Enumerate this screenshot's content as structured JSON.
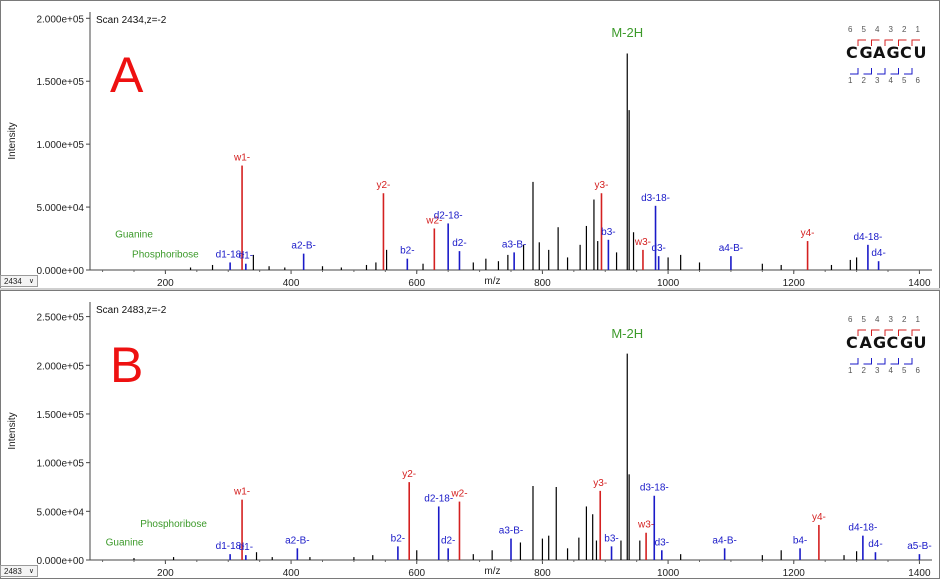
{
  "panels": [
    {
      "panel_letter": "A",
      "scan_title": "Scan 2434,z=-2",
      "scan_selector": "2434",
      "y_ticks": [
        "0.000e+00",
        "5.000e+04",
        "1.000e+05",
        "1.500e+05",
        "2.000e+05"
      ],
      "sequence": "CGAGCU",
      "top_numbers": [
        "6",
        "5",
        "4",
        "3",
        "2",
        "1"
      ],
      "bottom_numbers": [
        "1",
        "2",
        "3",
        "4",
        "5",
        "6"
      ]
    },
    {
      "panel_letter": "B",
      "scan_title": "Scan 2483,z=-2",
      "scan_selector": "2483",
      "y_ticks": [
        "0.000e+00",
        "5.000e+04",
        "1.000e+05",
        "1.500e+05",
        "2.000e+05",
        "2.500e+05"
      ],
      "sequence": "CAGCGU",
      "top_numbers": [
        "6",
        "5",
        "4",
        "3",
        "2",
        "1"
      ],
      "bottom_numbers": [
        "1",
        "2",
        "3",
        "4",
        "5",
        "6"
      ]
    }
  ],
  "chart_data": [
    {
      "type": "bar",
      "title": "Scan 2434,z=-2",
      "xlabel": "m/z",
      "ylabel": "Intensity",
      "xlim": [
        80,
        1420
      ],
      "ylim": [
        0,
        205000
      ],
      "x_ticks": [
        200,
        400,
        600,
        800,
        1000,
        1200,
        1400
      ],
      "colors": {
        "unlabeled": "#000000",
        "w_y": "#d42020",
        "a_b_d": "#1a1ac8",
        "base": "#3c9a2a"
      },
      "peaks": [
        {
          "mz": 240,
          "intensity": 2000
        },
        {
          "mz": 275,
          "intensity": 4000
        },
        {
          "mz": 303,
          "intensity": 6000,
          "label": "d1-18-",
          "cls": "abd"
        },
        {
          "mz": 322,
          "intensity": 83000,
          "label": "w1-",
          "cls": "wy"
        },
        {
          "mz": 328,
          "intensity": 5000,
          "label": "d1-",
          "cls": "abd"
        },
        {
          "mz": 340,
          "intensity": 12000
        },
        {
          "mz": 365,
          "intensity": 3000
        },
        {
          "mz": 390,
          "intensity": 2000
        },
        {
          "mz": 420,
          "intensity": 13000,
          "label": "a2-B-",
          "cls": "abd"
        },
        {
          "mz": 450,
          "intensity": 3000
        },
        {
          "mz": 480,
          "intensity": 2000
        },
        {
          "mz": 520,
          "intensity": 4000
        },
        {
          "mz": 535,
          "intensity": 6000
        },
        {
          "mz": 547,
          "intensity": 61000,
          "label": "y2-",
          "cls": "wy"
        },
        {
          "mz": 552,
          "intensity": 16000
        },
        {
          "mz": 585,
          "intensity": 9000,
          "label": "b2-",
          "cls": "abd"
        },
        {
          "mz": 610,
          "intensity": 5000
        },
        {
          "mz": 628,
          "intensity": 33000,
          "label": "w2-",
          "cls": "wy"
        },
        {
          "mz": 650,
          "intensity": 37000,
          "label": "d2-18-",
          "cls": "abd"
        },
        {
          "mz": 668,
          "intensity": 15000,
          "label": "d2-",
          "cls": "abd"
        },
        {
          "mz": 690,
          "intensity": 6000
        },
        {
          "mz": 710,
          "intensity": 9000
        },
        {
          "mz": 730,
          "intensity": 7000
        },
        {
          "mz": 745,
          "intensity": 12000
        },
        {
          "mz": 755,
          "intensity": 14000,
          "label": "a3-B-",
          "cls": "abd"
        },
        {
          "mz": 770,
          "intensity": 20000
        },
        {
          "mz": 785,
          "intensity": 70000
        },
        {
          "mz": 795,
          "intensity": 22000
        },
        {
          "mz": 810,
          "intensity": 16000
        },
        {
          "mz": 825,
          "intensity": 34000
        },
        {
          "mz": 840,
          "intensity": 10000
        },
        {
          "mz": 860,
          "intensity": 20000
        },
        {
          "mz": 870,
          "intensity": 35000
        },
        {
          "mz": 882,
          "intensity": 56000
        },
        {
          "mz": 888,
          "intensity": 23000
        },
        {
          "mz": 894,
          "intensity": 61000,
          "label": "y3-",
          "cls": "wy"
        },
        {
          "mz": 905,
          "intensity": 24000,
          "label": "b3-",
          "cls": "abd"
        },
        {
          "mz": 918,
          "intensity": 14000
        },
        {
          "mz": 935,
          "intensity": 172000
        },
        {
          "mz": 938,
          "intensity": 127000
        },
        {
          "mz": 945,
          "intensity": 30000
        },
        {
          "mz": 960,
          "intensity": 16000,
          "label": "w3-",
          "cls": "wy"
        },
        {
          "mz": 980,
          "intensity": 51000,
          "label": "d3-18-",
          "cls": "abd"
        },
        {
          "mz": 985,
          "intensity": 11000,
          "label": "d3-",
          "cls": "abd"
        },
        {
          "mz": 1000,
          "intensity": 10000
        },
        {
          "mz": 1020,
          "intensity": 12000
        },
        {
          "mz": 1050,
          "intensity": 6000
        },
        {
          "mz": 1100,
          "intensity": 11000,
          "label": "a4-B-",
          "cls": "abd"
        },
        {
          "mz": 1150,
          "intensity": 5000
        },
        {
          "mz": 1180,
          "intensity": 4000
        },
        {
          "mz": 1222,
          "intensity": 23000,
          "label": "y4-",
          "cls": "wy"
        },
        {
          "mz": 1260,
          "intensity": 4000
        },
        {
          "mz": 1290,
          "intensity": 8000
        },
        {
          "mz": 1300,
          "intensity": 10000
        },
        {
          "mz": 1318,
          "intensity": 20000,
          "label": "d4-18-",
          "cls": "abd"
        },
        {
          "mz": 1335,
          "intensity": 7000,
          "label": "d4-",
          "cls": "abd"
        }
      ],
      "annotations": [
        {
          "text": "M-2H",
          "mz": 935,
          "intensity": 185000,
          "cls": "base"
        },
        {
          "text": "Guanine",
          "mz": 150,
          "intensity": 26000,
          "cls": "base"
        },
        {
          "text": "Phosphoribose",
          "mz": 200,
          "intensity": 10000,
          "cls": "base"
        }
      ]
    },
    {
      "type": "bar",
      "title": "Scan 2483,z=-2",
      "xlabel": "m/z",
      "ylabel": "Intensity",
      "xlim": [
        80,
        1420
      ],
      "ylim": [
        0,
        265000
      ],
      "x_ticks": [
        200,
        400,
        600,
        800,
        1000,
        1200,
        1400
      ],
      "colors": {
        "unlabeled": "#000000",
        "w_y": "#d42020",
        "a_b_d": "#1a1ac8",
        "base": "#3c9a2a"
      },
      "peaks": [
        {
          "mz": 150,
          "intensity": 2000
        },
        {
          "mz": 213,
          "intensity": 3000
        },
        {
          "mz": 303,
          "intensity": 6000,
          "label": "d1-18-",
          "cls": "abd"
        },
        {
          "mz": 322,
          "intensity": 62000,
          "label": "w1-",
          "cls": "wy"
        },
        {
          "mz": 328,
          "intensity": 5000,
          "label": "d1-",
          "cls": "abd"
        },
        {
          "mz": 345,
          "intensity": 8000
        },
        {
          "mz": 370,
          "intensity": 3000
        },
        {
          "mz": 410,
          "intensity": 12000,
          "label": "a2-B-",
          "cls": "abd"
        },
        {
          "mz": 430,
          "intensity": 3000
        },
        {
          "mz": 500,
          "intensity": 3000
        },
        {
          "mz": 530,
          "intensity": 5000
        },
        {
          "mz": 570,
          "intensity": 14000,
          "label": "b2-",
          "cls": "abd"
        },
        {
          "mz": 588,
          "intensity": 80000,
          "label": "y2-",
          "cls": "wy"
        },
        {
          "mz": 600,
          "intensity": 10000
        },
        {
          "mz": 635,
          "intensity": 55000,
          "label": "d2-18-",
          "cls": "abd"
        },
        {
          "mz": 650,
          "intensity": 12000,
          "label": "d2-",
          "cls": "abd"
        },
        {
          "mz": 668,
          "intensity": 60000,
          "label": "w2-",
          "cls": "wy"
        },
        {
          "mz": 690,
          "intensity": 6000
        },
        {
          "mz": 720,
          "intensity": 10000
        },
        {
          "mz": 750,
          "intensity": 22000,
          "label": "a3-B-",
          "cls": "abd"
        },
        {
          "mz": 765,
          "intensity": 18000
        },
        {
          "mz": 785,
          "intensity": 76000
        },
        {
          "mz": 800,
          "intensity": 22000
        },
        {
          "mz": 810,
          "intensity": 25000
        },
        {
          "mz": 822,
          "intensity": 75000
        },
        {
          "mz": 840,
          "intensity": 12000
        },
        {
          "mz": 858,
          "intensity": 23000
        },
        {
          "mz": 870,
          "intensity": 55000
        },
        {
          "mz": 880,
          "intensity": 47000
        },
        {
          "mz": 886,
          "intensity": 20000
        },
        {
          "mz": 892,
          "intensity": 71000,
          "label": "y3-",
          "cls": "wy"
        },
        {
          "mz": 910,
          "intensity": 14000,
          "label": "b3-",
          "cls": "abd"
        },
        {
          "mz": 925,
          "intensity": 20000
        },
        {
          "mz": 935,
          "intensity": 212000
        },
        {
          "mz": 938,
          "intensity": 88000
        },
        {
          "mz": 955,
          "intensity": 20000
        },
        {
          "mz": 965,
          "intensity": 28000,
          "label": "w3-",
          "cls": "wy"
        },
        {
          "mz": 978,
          "intensity": 66000,
          "label": "d3-18-",
          "cls": "abd"
        },
        {
          "mz": 990,
          "intensity": 10000,
          "label": "d3-",
          "cls": "abd"
        },
        {
          "mz": 1020,
          "intensity": 6000
        },
        {
          "mz": 1090,
          "intensity": 12000,
          "label": "a4-B-",
          "cls": "abd"
        },
        {
          "mz": 1150,
          "intensity": 5000
        },
        {
          "mz": 1180,
          "intensity": 10000
        },
        {
          "mz": 1210,
          "intensity": 12000,
          "label": "b4-",
          "cls": "abd"
        },
        {
          "mz": 1240,
          "intensity": 36000,
          "label": "y4-",
          "cls": "wy"
        },
        {
          "mz": 1280,
          "intensity": 5000
        },
        {
          "mz": 1300,
          "intensity": 9000
        },
        {
          "mz": 1310,
          "intensity": 25000,
          "label": "d4-18-",
          "cls": "abd"
        },
        {
          "mz": 1330,
          "intensity": 8000,
          "label": "d4-",
          "cls": "abd"
        },
        {
          "mz": 1400,
          "intensity": 6000,
          "label": "a5-B-",
          "cls": "abd"
        }
      ],
      "annotations": [
        {
          "text": "M-2H",
          "mz": 935,
          "intensity": 228000,
          "cls": "base"
        },
        {
          "text": "Guanine",
          "mz": 135,
          "intensity": 15000,
          "cls": "base"
        },
        {
          "text": "Phosphoribose",
          "mz": 213,
          "intensity": 34000,
          "cls": "base"
        }
      ]
    }
  ]
}
